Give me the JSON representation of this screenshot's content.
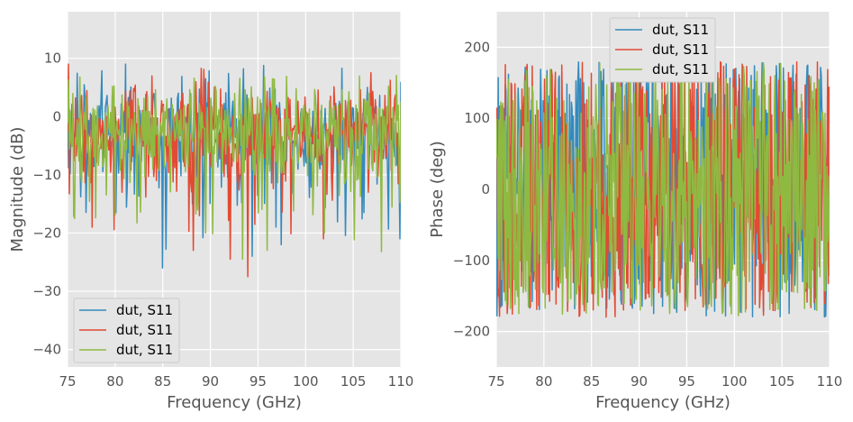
{
  "chart_data": [
    {
      "type": "line",
      "title": "",
      "xlabel": "Frequency (GHz)",
      "ylabel": "Magnitude (dB)",
      "xlim": [
        75,
        110
      ],
      "ylim": [
        -43,
        18
      ],
      "xticks": [
        75,
        80,
        85,
        90,
        95,
        100,
        105,
        110
      ],
      "xtick_labels": [
        "75",
        "80",
        "85",
        "90",
        "95",
        "100",
        "105",
        "110"
      ],
      "yticks": [
        10,
        0,
        -10,
        -20,
        -30,
        -40
      ],
      "ytick_labels": [
        "10",
        "0",
        "−10",
        "−20",
        "−30",
        "−40"
      ],
      "grid": true,
      "legend_position": "lower-left",
      "noise": {
        "mean": -2.5,
        "spread": 5
      },
      "series": [
        {
          "name": "dut, S11",
          "color": "#348ABD",
          "extremes": [
            [
              75,
              6
            ],
            [
              81.1,
              9
            ],
            [
              85.0,
              -26
            ],
            [
              85.3,
              -22.8
            ],
            [
              89.2,
              -20.8
            ],
            [
              91.9,
              7.4
            ],
            [
              94.4,
              -24
            ],
            [
              97.4,
              -22
            ],
            [
              103.8,
              8.3
            ],
            [
              109.9,
              -21
            ]
          ]
        },
        {
          "name": "dut, S11",
          "color": "#E24A33",
          "extremes": [
            [
              75.1,
              9
            ],
            [
              77.6,
              -19
            ],
            [
              88.2,
              -23
            ],
            [
              92.1,
              -24.5
            ],
            [
              93.9,
              -27.5
            ],
            [
              101.9,
              -34.8
            ],
            [
              101.9,
              -21
            ],
            [
              106.6,
              -13
            ]
          ]
        },
        {
          "name": "dut, S11",
          "color": "#8EBA42",
          "extremes": [
            [
              75.7,
              -17.5
            ],
            [
              89.5,
              -20
            ],
            [
              93.4,
              -24.5
            ],
            [
              96.0,
              -23
            ],
            [
              102.0,
              -20
            ],
            [
              108.0,
              -23.2
            ]
          ]
        }
      ]
    },
    {
      "type": "line",
      "title": "",
      "xlabel": "Frequency (GHz)",
      "ylabel": "Phase (deg)",
      "xlim": [
        75,
        110
      ],
      "ylim": [
        -250,
        250
      ],
      "xticks": [
        75,
        80,
        85,
        90,
        95,
        100,
        105,
        110
      ],
      "xtick_labels": [
        "75",
        "80",
        "85",
        "90",
        "95",
        "100",
        "105",
        "110"
      ],
      "yticks": [
        200,
        100,
        0,
        -100,
        -200
      ],
      "ytick_labels": [
        "200",
        "100",
        "0",
        "−100",
        "−200"
      ],
      "grid": true,
      "legend_position": "upper-center",
      "value_range": [
        -180,
        180
      ],
      "series": [
        {
          "name": "dut, S11",
          "color": "#348ABD"
        },
        {
          "name": "dut, S11",
          "color": "#E24A33"
        },
        {
          "name": "dut, S11",
          "color": "#8EBA42"
        }
      ]
    }
  ]
}
